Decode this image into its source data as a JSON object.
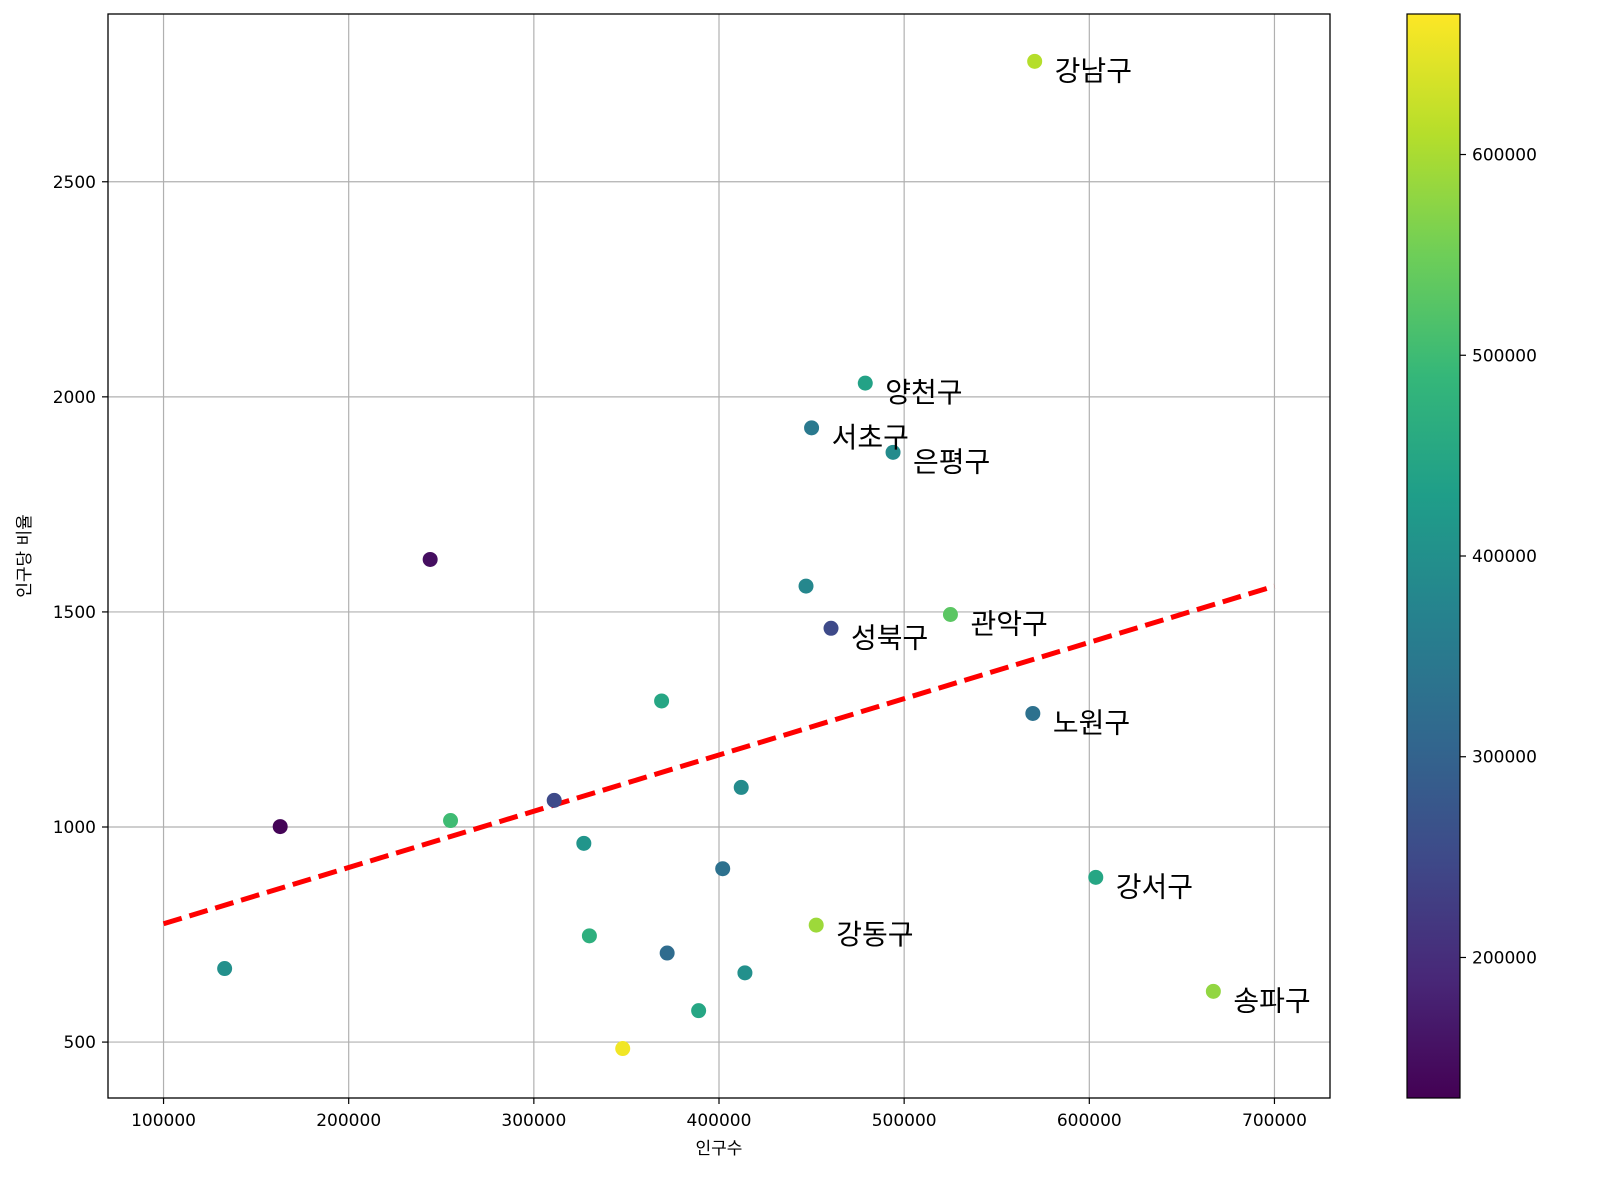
{
  "chart_data": {
    "type": "scatter",
    "xlabel": "인구수",
    "ylabel": "인구당 비율",
    "xlim": [
      70000,
      730000
    ],
    "ylim": [
      370,
      2890
    ],
    "xticks": [
      "100000",
      "200000",
      "300000",
      "400000",
      "500000",
      "600000",
      "700000"
    ],
    "yticks": [
      "500",
      "1000",
      "1500",
      "2000",
      "2500"
    ],
    "grid": true,
    "colormap": "viridis",
    "colorbar": {
      "range": [
        130000,
        670000
      ],
      "ticks": [
        "200000",
        "300000",
        "400000",
        "500000",
        "600000"
      ]
    },
    "trendline": {
      "color": "#ff0000",
      "style": "dashed",
      "points": [
        [
          100000,
          775
        ],
        [
          700000,
          1560
        ]
      ]
    },
    "points": [
      {
        "x": 570500,
        "y": 2780,
        "c": 610000,
        "label": "강남구"
      },
      {
        "x": 479000,
        "y": 2032,
        "c": 440000,
        "label": "양천구"
      },
      {
        "x": 450000,
        "y": 1928,
        "c": 350000,
        "label": "서초구"
      },
      {
        "x": 494000,
        "y": 1871,
        "c": 390000,
        "label": "은평구"
      },
      {
        "x": 244000,
        "y": 1622,
        "c": 150000,
        "label": ""
      },
      {
        "x": 447000,
        "y": 1560,
        "c": 380000,
        "label": ""
      },
      {
        "x": 525000,
        "y": 1494,
        "c": 530000,
        "label": "관악구"
      },
      {
        "x": 460500,
        "y": 1462,
        "c": 250000,
        "label": "성북구"
      },
      {
        "x": 369000,
        "y": 1293,
        "c": 450000,
        "label": ""
      },
      {
        "x": 569500,
        "y": 1264,
        "c": 330000,
        "label": "노원구"
      },
      {
        "x": 412000,
        "y": 1092,
        "c": 390000,
        "label": ""
      },
      {
        "x": 311000,
        "y": 1062,
        "c": 250000,
        "label": ""
      },
      {
        "x": 163000,
        "y": 1001,
        "c": 135000,
        "label": ""
      },
      {
        "x": 255000,
        "y": 1015,
        "c": 500000,
        "label": ""
      },
      {
        "x": 327000,
        "y": 962,
        "c": 410000,
        "label": ""
      },
      {
        "x": 402000,
        "y": 903,
        "c": 330000,
        "label": ""
      },
      {
        "x": 603500,
        "y": 883,
        "c": 450000,
        "label": "강서구"
      },
      {
        "x": 452500,
        "y": 772,
        "c": 590000,
        "label": "강동구"
      },
      {
        "x": 330000,
        "y": 747,
        "c": 470000,
        "label": ""
      },
      {
        "x": 372000,
        "y": 707,
        "c": 320000,
        "label": ""
      },
      {
        "x": 133000,
        "y": 671,
        "c": 400000,
        "label": ""
      },
      {
        "x": 414000,
        "y": 661,
        "c": 400000,
        "label": ""
      },
      {
        "x": 667000,
        "y": 618,
        "c": 580000,
        "label": "송파구"
      },
      {
        "x": 389000,
        "y": 573,
        "c": 450000,
        "label": ""
      },
      {
        "x": 348000,
        "y": 485,
        "c": 660000,
        "label": ""
      }
    ]
  }
}
